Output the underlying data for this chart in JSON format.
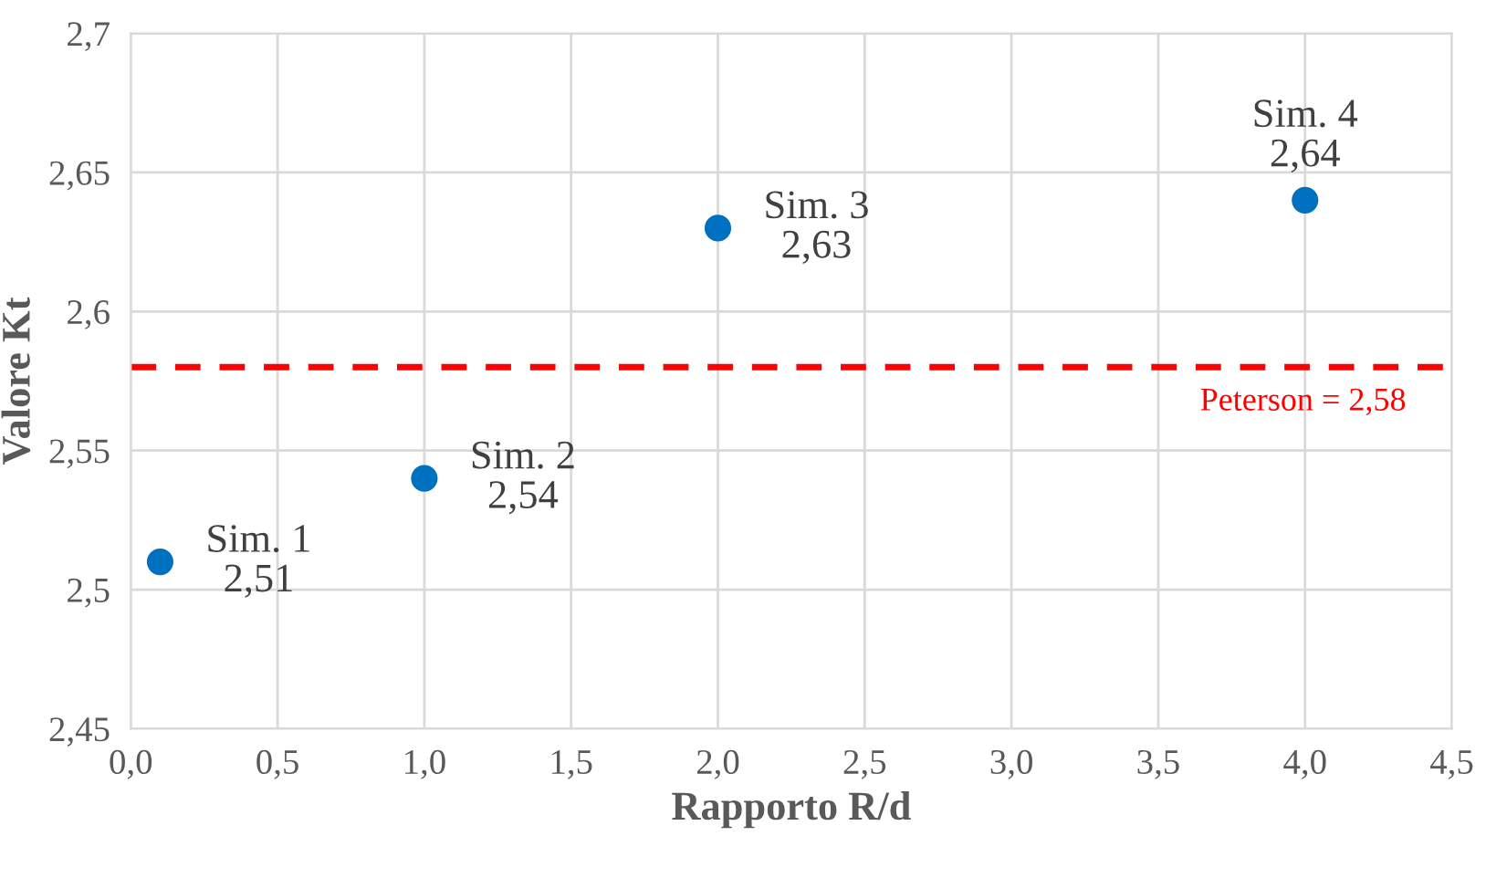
{
  "chart_data": {
    "type": "scatter",
    "xlabel": "Rapporto R/d",
    "ylabel": "Valore Kt",
    "x": [
      0.1,
      1.0,
      2.0,
      4.0
    ],
    "series": [
      {
        "color": "#0070c0",
        "values": [
          2.51,
          2.54,
          2.63,
          2.64
        ],
        "value_labels": [
          "Sim. 1\n2,51",
          "Sim. 2\n2,54",
          "Sim. 3\n2,63",
          "Sim. 4\n2,64"
        ]
      }
    ],
    "xlim": [
      0,
      4.5
    ],
    "ylim": [
      2.45,
      2.7
    ],
    "xticks": [
      {
        "value": 0,
        "label": "0,0"
      },
      {
        "value": 0.5,
        "label": "0,5"
      },
      {
        "value": 1,
        "label": "1,0"
      },
      {
        "value": 1.5,
        "label": "1,5"
      },
      {
        "value": 2,
        "label": "2,0"
      },
      {
        "value": 2.5,
        "label": "2,5"
      },
      {
        "value": 3,
        "label": "3,0"
      },
      {
        "value": 3.5,
        "label": "3,5"
      },
      {
        "value": 4,
        "label": "4,0"
      },
      {
        "value": 4.5,
        "label": "4,5"
      }
    ],
    "yticks": [
      {
        "value": 2.45,
        "label": "2,45"
      },
      {
        "value": 2.5,
        "label": "2,5"
      },
      {
        "value": 2.55,
        "label": "2,55"
      },
      {
        "value": 2.6,
        "label": "2,6"
      },
      {
        "value": 2.65,
        "label": "2,65"
      },
      {
        "value": 2.7,
        "label": "2,7"
      }
    ],
    "ref_lines": [
      {
        "axis": "y",
        "value": 2.58,
        "label": "Peterson = 2,58",
        "color": "#ff0000",
        "line_style": "dashed"
      }
    ],
    "grid": true,
    "marker": "circle"
  }
}
